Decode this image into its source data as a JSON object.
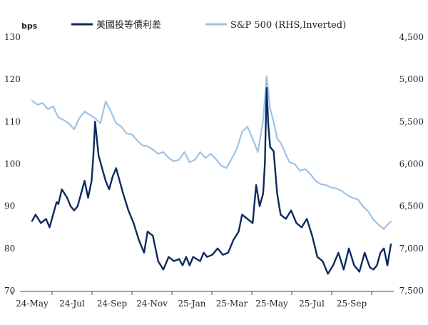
{
  "chart_data": {
    "type": "line",
    "title": "",
    "left_axis": {
      "unit_label": "bps",
      "ylim": [
        70,
        130
      ],
      "ticks": [
        "130",
        "120",
        "110",
        "100",
        "90",
        "80",
        "70"
      ]
    },
    "right_axis": {
      "label_note": "RHS, Inverted",
      "ylim_inverted": [
        4500,
        7500
      ],
      "ticks": [
        "4,500",
        "5,000",
        "5,500",
        "6,000",
        "6,500",
        "7,000",
        "7,500"
      ]
    },
    "x_ticks": [
      "24-May",
      "24-Jul",
      "24-Sep",
      "24-Nov",
      "25-Jan",
      "25-Mar",
      "25-May",
      "25-Jul",
      "25-Sep"
    ],
    "series": [
      {
        "name": "美國投等債利差",
        "axis": "left",
        "color": "#0d2a5e",
        "t": [
          0,
          2,
          5,
          8,
          10,
          12,
          14,
          15,
          17,
          20,
          22,
          24,
          26,
          28,
          30,
          32,
          34,
          35,
          36,
          38,
          40,
          42,
          44,
          46,
          48,
          50,
          52,
          55,
          58,
          61,
          64,
          66,
          69,
          72,
          75,
          78,
          81,
          84,
          86,
          88,
          90,
          92,
          94,
          96,
          98,
          100,
          103,
          106,
          109,
          112,
          115,
          118,
          120,
          123,
          126,
          128,
          130,
          132,
          133,
          134,
          135,
          136,
          138,
          140,
          142,
          145,
          148,
          151,
          154,
          157,
          160,
          163,
          166,
          169,
          172,
          175,
          178,
          181,
          184,
          187,
          190,
          193,
          195,
          197,
          199,
          201,
          203,
          205
        ],
        "values": [
          86.5,
          88,
          86,
          87,
          85,
          88,
          91,
          90.5,
          94,
          92,
          90,
          89,
          90,
          93,
          96,
          92,
          96,
          102,
          110,
          102,
          99,
          96,
          94,
          97,
          99,
          96,
          93,
          89,
          86,
          82,
          79,
          84,
          83,
          77,
          75,
          78,
          77,
          77.5,
          76,
          78,
          76,
          78,
          77.5,
          77,
          79,
          78,
          78.5,
          80,
          78.5,
          79,
          82,
          84,
          88,
          87,
          86,
          95,
          90,
          93,
          100,
          118,
          109,
          104,
          103,
          93,
          88,
          87,
          89,
          86,
          85,
          87,
          83,
          78,
          77,
          74,
          76,
          79,
          75,
          80,
          76,
          74.5,
          79,
          75.5,
          75,
          76,
          79,
          80,
          76,
          81
        ]
      },
      {
        "name": "S&P 500 (RHS,Inverted)",
        "axis": "right",
        "color": "#9dc3e6",
        "t": [
          0,
          3,
          6,
          9,
          12,
          15,
          18,
          21,
          24,
          27,
          30,
          33,
          36,
          39,
          42,
          45,
          48,
          51,
          54,
          57,
          60,
          63,
          66,
          69,
          72,
          75,
          78,
          81,
          84,
          87,
          90,
          93,
          96,
          99,
          102,
          105,
          108,
          111,
          114,
          117,
          120,
          123,
          126,
          129,
          132,
          134,
          136,
          138,
          140,
          142,
          144,
          147,
          150,
          153,
          156,
          159,
          162,
          165,
          168,
          171,
          174,
          177,
          180,
          183,
          186,
          189,
          192,
          195,
          198,
          201,
          203,
          205
        ],
        "values": [
          5250,
          5300,
          5280,
          5350,
          5320,
          5450,
          5480,
          5520,
          5590,
          5460,
          5380,
          5420,
          5460,
          5520,
          5260,
          5380,
          5520,
          5560,
          5640,
          5650,
          5720,
          5780,
          5790,
          5830,
          5880,
          5860,
          5930,
          5970,
          5950,
          5860,
          5980,
          5950,
          5860,
          5930,
          5880,
          5940,
          6020,
          6050,
          5940,
          5820,
          5620,
          5560,
          5700,
          5860,
          5480,
          4960,
          5350,
          5500,
          5700,
          5750,
          5840,
          5980,
          6000,
          6080,
          6060,
          6120,
          6200,
          6240,
          6250,
          6280,
          6290,
          6320,
          6370,
          6400,
          6420,
          6500,
          6560,
          6660,
          6720,
          6770,
          6720,
          6680
        ]
      }
    ]
  }
}
